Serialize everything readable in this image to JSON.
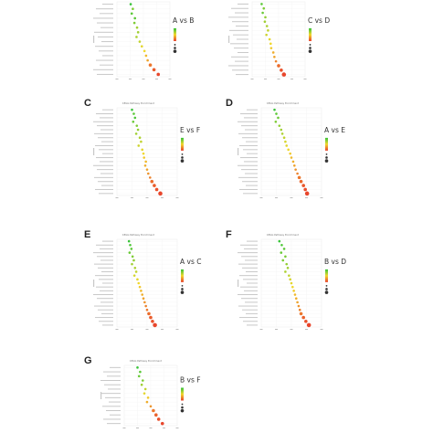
{
  "figure": {
    "legend_colors": {
      "high": "#35c43a",
      "mid": "#f2d82c",
      "low": "#e8412c"
    },
    "point_color_low_fdr": "#e23a28",
    "point_color_high_fdr": "#3fbf45"
  },
  "chart_data": [
    {
      "id": "A",
      "letter": "",
      "type": "scatter",
      "title": "",
      "comparison": "A vs B",
      "xlabel": "",
      "ylabel": "",
      "xticks": [],
      "xlim": [
        0,
        1
      ],
      "legend": {
        "title": "",
        "number_title": ""
      },
      "points": [
        {
          "x": 0.26,
          "fdr": 0.55,
          "size": 1
        },
        {
          "x": 0.3,
          "fdr": 0.45,
          "size": 1
        },
        {
          "x": 0.28,
          "fdr": 0.5,
          "size": 1
        },
        {
          "x": 0.34,
          "fdr": 0.5,
          "size": 1
        },
        {
          "x": 0.33,
          "fdr": 0.45,
          "size": 1
        },
        {
          "x": 0.38,
          "fdr": 0.4,
          "size": 1
        },
        {
          "x": 0.4,
          "fdr": 0.4,
          "size": 1
        },
        {
          "x": 0.37,
          "fdr": 0.38,
          "size": 1
        },
        {
          "x": 0.43,
          "fdr": 0.35,
          "size": 1
        },
        {
          "x": 0.47,
          "fdr": 0.3,
          "size": 1
        },
        {
          "x": 0.52,
          "fdr": 0.28,
          "size": 1
        },
        {
          "x": 0.55,
          "fdr": 0.22,
          "size": 1
        },
        {
          "x": 0.58,
          "fdr": 0.18,
          "size": 1
        },
        {
          "x": 0.63,
          "fdr": 0.1,
          "size": 2
        },
        {
          "x": 0.7,
          "fdr": 0.05,
          "size": 2
        },
        {
          "x": 0.78,
          "fdr": 0.01,
          "size": 2
        }
      ]
    },
    {
      "id": "B",
      "letter": "",
      "type": "scatter",
      "title": "",
      "comparison": "C vs D",
      "xlabel": "",
      "ylabel": "",
      "xticks": [],
      "xlim": [
        0,
        1
      ],
      "legend": {
        "title": "",
        "number_title": ""
      },
      "points": [
        {
          "x": 0.18,
          "fdr": 0.5,
          "size": 1
        },
        {
          "x": 0.22,
          "fdr": 0.45,
          "size": 1
        },
        {
          "x": 0.2,
          "fdr": 0.48,
          "size": 1
        },
        {
          "x": 0.25,
          "fdr": 0.42,
          "size": 1
        },
        {
          "x": 0.24,
          "fdr": 0.4,
          "size": 1
        },
        {
          "x": 0.28,
          "fdr": 0.38,
          "size": 1
        },
        {
          "x": 0.3,
          "fdr": 0.35,
          "size": 1
        },
        {
          "x": 0.27,
          "fdr": 0.33,
          "size": 1
        },
        {
          "x": 0.33,
          "fdr": 0.3,
          "size": 1
        },
        {
          "x": 0.35,
          "fdr": 0.28,
          "size": 1
        },
        {
          "x": 0.36,
          "fdr": 0.25,
          "size": 1
        },
        {
          "x": 0.4,
          "fdr": 0.2,
          "size": 1
        },
        {
          "x": 0.42,
          "fdr": 0.18,
          "size": 1
        },
        {
          "x": 0.45,
          "fdr": 0.12,
          "size": 1
        },
        {
          "x": 0.5,
          "fdr": 0.08,
          "size": 2
        },
        {
          "x": 0.55,
          "fdr": 0.03,
          "size": 2
        },
        {
          "x": 0.6,
          "fdr": 0.01,
          "size": 3
        }
      ]
    },
    {
      "id": "C",
      "letter": "C",
      "type": "scatter",
      "title": "KEGG Pathway Enrichment",
      "comparison": "E vs F",
      "xlabel": "",
      "ylabel": "",
      "xticks": [],
      "xlim": [
        0,
        1
      ],
      "legend": {
        "title": "",
        "number_title": ""
      },
      "points": [
        {
          "x": 0.25,
          "fdr": 0.55,
          "size": 1
        },
        {
          "x": 0.28,
          "fdr": 0.5,
          "size": 1
        },
        {
          "x": 0.3,
          "fdr": 0.52,
          "size": 1
        },
        {
          "x": 0.27,
          "fdr": 0.48,
          "size": 1
        },
        {
          "x": 0.33,
          "fdr": 0.45,
          "size": 1
        },
        {
          "x": 0.35,
          "fdr": 0.42,
          "size": 1
        },
        {
          "x": 0.32,
          "fdr": 0.4,
          "size": 1
        },
        {
          "x": 0.38,
          "fdr": 0.38,
          "size": 1
        },
        {
          "x": 0.4,
          "fdr": 0.35,
          "size": 1
        },
        {
          "x": 0.36,
          "fdr": 0.33,
          "size": 1
        },
        {
          "x": 0.42,
          "fdr": 0.3,
          "size": 1
        },
        {
          "x": 0.44,
          "fdr": 0.28,
          "size": 1
        },
        {
          "x": 0.45,
          "fdr": 0.25,
          "size": 1
        },
        {
          "x": 0.48,
          "fdr": 0.22,
          "size": 1
        },
        {
          "x": 0.47,
          "fdr": 0.2,
          "size": 1
        },
        {
          "x": 0.5,
          "fdr": 0.18,
          "size": 1
        },
        {
          "x": 0.52,
          "fdr": 0.15,
          "size": 1
        },
        {
          "x": 0.55,
          "fdr": 0.12,
          "size": 1
        },
        {
          "x": 0.58,
          "fdr": 0.08,
          "size": 2
        },
        {
          "x": 0.62,
          "fdr": 0.05,
          "size": 2
        },
        {
          "x": 0.66,
          "fdr": 0.03,
          "size": 2
        },
        {
          "x": 0.72,
          "fdr": 0.01,
          "size": 3
        }
      ]
    },
    {
      "id": "D",
      "letter": "D",
      "type": "scatter",
      "title": "KEGG Pathway Enrichment",
      "comparison": "A vs E",
      "xlabel": "",
      "ylabel": "",
      "xticks": [],
      "xlim": [
        0,
        1
      ],
      "legend": {
        "title": "",
        "number_title": ""
      },
      "points": [
        {
          "x": 0.22,
          "fdr": 0.55,
          "size": 1
        },
        {
          "x": 0.25,
          "fdr": 0.5,
          "size": 1
        },
        {
          "x": 0.28,
          "fdr": 0.48,
          "size": 1
        },
        {
          "x": 0.24,
          "fdr": 0.45,
          "size": 1
        },
        {
          "x": 0.3,
          "fdr": 0.42,
          "size": 1
        },
        {
          "x": 0.33,
          "fdr": 0.4,
          "size": 1
        },
        {
          "x": 0.35,
          "fdr": 0.38,
          "size": 1
        },
        {
          "x": 0.38,
          "fdr": 0.35,
          "size": 1
        },
        {
          "x": 0.4,
          "fdr": 0.32,
          "size": 1
        },
        {
          "x": 0.42,
          "fdr": 0.3,
          "size": 1
        },
        {
          "x": 0.45,
          "fdr": 0.28,
          "size": 1
        },
        {
          "x": 0.48,
          "fdr": 0.25,
          "size": 1
        },
        {
          "x": 0.5,
          "fdr": 0.22,
          "size": 1
        },
        {
          "x": 0.53,
          "fdr": 0.2,
          "size": 1
        },
        {
          "x": 0.55,
          "fdr": 0.18,
          "size": 1
        },
        {
          "x": 0.57,
          "fdr": 0.15,
          "size": 1
        },
        {
          "x": 0.6,
          "fdr": 0.12,
          "size": 1
        },
        {
          "x": 0.63,
          "fdr": 0.1,
          "size": 2
        },
        {
          "x": 0.66,
          "fdr": 0.07,
          "size": 2
        },
        {
          "x": 0.7,
          "fdr": 0.04,
          "size": 2
        },
        {
          "x": 0.73,
          "fdr": 0.02,
          "size": 2
        },
        {
          "x": 0.76,
          "fdr": 0.01,
          "size": 3
        }
      ]
    },
    {
      "id": "E",
      "letter": "E",
      "type": "scatter",
      "title": "KEGG Pathway Enrichment",
      "comparison": "A vs C",
      "xlabel": "",
      "ylabel": "",
      "xticks": [],
      "xlim": [
        0,
        1
      ],
      "legend": {
        "title": "",
        "number_title": ""
      },
      "points": [
        {
          "x": 0.2,
          "fdr": 0.55,
          "size": 1
        },
        {
          "x": 0.22,
          "fdr": 0.52,
          "size": 1
        },
        {
          "x": 0.24,
          "fdr": 0.5,
          "size": 1
        },
        {
          "x": 0.21,
          "fdr": 0.48,
          "size": 1
        },
        {
          "x": 0.26,
          "fdr": 0.45,
          "size": 1
        },
        {
          "x": 0.28,
          "fdr": 0.42,
          "size": 1
        },
        {
          "x": 0.25,
          "fdr": 0.4,
          "size": 1
        },
        {
          "x": 0.3,
          "fdr": 0.38,
          "size": 1
        },
        {
          "x": 0.32,
          "fdr": 0.35,
          "size": 1
        },
        {
          "x": 0.29,
          "fdr": 0.32,
          "size": 1
        },
        {
          "x": 0.34,
          "fdr": 0.3,
          "size": 1
        },
        {
          "x": 0.36,
          "fdr": 0.28,
          "size": 1
        },
        {
          "x": 0.38,
          "fdr": 0.25,
          "size": 1
        },
        {
          "x": 0.4,
          "fdr": 0.22,
          "size": 1
        },
        {
          "x": 0.42,
          "fdr": 0.2,
          "size": 1
        },
        {
          "x": 0.44,
          "fdr": 0.18,
          "size": 1
        },
        {
          "x": 0.46,
          "fdr": 0.15,
          "size": 1
        },
        {
          "x": 0.48,
          "fdr": 0.12,
          "size": 1
        },
        {
          "x": 0.5,
          "fdr": 0.1,
          "size": 1
        },
        {
          "x": 0.53,
          "fdr": 0.08,
          "size": 2
        },
        {
          "x": 0.56,
          "fdr": 0.05,
          "size": 2
        },
        {
          "x": 0.59,
          "fdr": 0.03,
          "size": 2
        },
        {
          "x": 0.63,
          "fdr": 0.01,
          "size": 3
        }
      ]
    },
    {
      "id": "F",
      "letter": "F",
      "type": "scatter",
      "title": "KEGG Pathway Enrichment",
      "comparison": "B vs D",
      "xlabel": "",
      "ylabel": "",
      "xticks": [],
      "xlim": [
        0,
        1
      ],
      "legend": {
        "title": "",
        "number_title": ""
      },
      "points": [
        {
          "x": 0.3,
          "fdr": 0.55,
          "size": 1
        },
        {
          "x": 0.34,
          "fdr": 0.52,
          "size": 1
        },
        {
          "x": 0.38,
          "fdr": 0.5,
          "size": 1
        },
        {
          "x": 0.33,
          "fdr": 0.48,
          "size": 1
        },
        {
          "x": 0.4,
          "fdr": 0.46,
          "size": 1
        },
        {
          "x": 0.36,
          "fdr": 0.45,
          "size": 1
        },
        {
          "x": 0.42,
          "fdr": 0.42,
          "size": 1
        },
        {
          "x": 0.44,
          "fdr": 0.4,
          "size": 1
        },
        {
          "x": 0.4,
          "fdr": 0.38,
          "size": 1
        },
        {
          "x": 0.46,
          "fdr": 0.35,
          "size": 1
        },
        {
          "x": 0.48,
          "fdr": 0.32,
          "size": 1
        },
        {
          "x": 0.5,
          "fdr": 0.3,
          "size": 1
        },
        {
          "x": 0.52,
          "fdr": 0.28,
          "size": 1
        },
        {
          "x": 0.54,
          "fdr": 0.25,
          "size": 1
        },
        {
          "x": 0.56,
          "fdr": 0.22,
          "size": 1
        },
        {
          "x": 0.58,
          "fdr": 0.2,
          "size": 1
        },
        {
          "x": 0.6,
          "fdr": 0.18,
          "size": 1
        },
        {
          "x": 0.62,
          "fdr": 0.15,
          "size": 1
        },
        {
          "x": 0.64,
          "fdr": 0.12,
          "size": 1
        },
        {
          "x": 0.66,
          "fdr": 0.1,
          "size": 2
        },
        {
          "x": 0.7,
          "fdr": 0.06,
          "size": 2
        },
        {
          "x": 0.74,
          "fdr": 0.03,
          "size": 2
        },
        {
          "x": 0.79,
          "fdr": 0.01,
          "size": 3
        }
      ]
    },
    {
      "id": "G",
      "letter": "G",
      "type": "scatter",
      "title": "KEGG Pathway Enrichment",
      "comparison": "B vs F",
      "xlabel": "",
      "ylabel": "",
      "xticks": [],
      "xlim": [
        0,
        1
      ],
      "legend": {
        "title": "",
        "number_title": ""
      },
      "points": [
        {
          "x": 0.25,
          "fdr": 0.55,
          "size": 1
        },
        {
          "x": 0.3,
          "fdr": 0.5,
          "size": 1
        },
        {
          "x": 0.28,
          "fdr": 0.48,
          "size": 1
        },
        {
          "x": 0.35,
          "fdr": 0.45,
          "size": 1
        },
        {
          "x": 0.33,
          "fdr": 0.4,
          "size": 1
        },
        {
          "x": 0.4,
          "fdr": 0.35,
          "size": 1
        },
        {
          "x": 0.38,
          "fdr": 0.3,
          "size": 1
        },
        {
          "x": 0.45,
          "fdr": 0.25,
          "size": 1
        },
        {
          "x": 0.43,
          "fdr": 0.2,
          "size": 1
        },
        {
          "x": 0.5,
          "fdr": 0.15,
          "size": 1
        },
        {
          "x": 0.55,
          "fdr": 0.1,
          "size": 2
        },
        {
          "x": 0.6,
          "fdr": 0.06,
          "size": 2
        },
        {
          "x": 0.65,
          "fdr": 0.03,
          "size": 2
        },
        {
          "x": 0.72,
          "fdr": 0.01,
          "size": 2
        }
      ]
    }
  ]
}
